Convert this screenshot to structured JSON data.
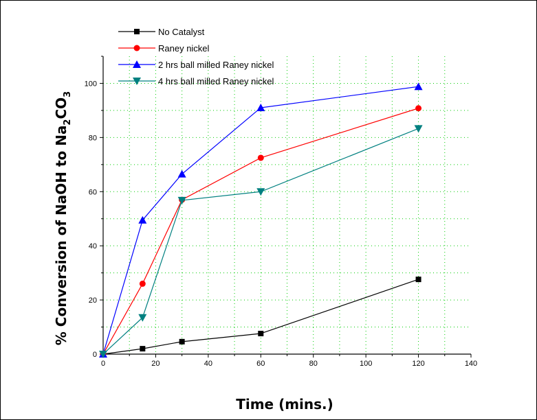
{
  "chart_data": {
    "type": "line",
    "xlabel": "Time (mins.)",
    "ylabel": {
      "text": "% Conversion of NaOH to Na",
      "sub1": "2",
      "mid": "CO",
      "sub2": "3"
    },
    "xlim": [
      0,
      140
    ],
    "ylim": [
      0,
      110
    ],
    "xticks": [
      0,
      20,
      40,
      60,
      80,
      100,
      120,
      140
    ],
    "yticks": [
      0,
      20,
      40,
      60,
      80,
      100
    ],
    "grid": true,
    "legend_position": "top-left",
    "series": [
      {
        "name": "No Catalyst",
        "color": "#000000",
        "marker": "square",
        "x": [
          0,
          15,
          30,
          60,
          120
        ],
        "y": [
          0,
          2,
          4.6,
          7.6,
          27.6
        ]
      },
      {
        "name": "Raney nickel",
        "color": "#ff0000",
        "marker": "circle",
        "x": [
          0,
          15,
          30,
          60,
          120
        ],
        "y": [
          0,
          26,
          57,
          72.5,
          90.8
        ]
      },
      {
        "name": "2 hrs ball milled Raney nickel",
        "color": "#0000ff",
        "marker": "triangle-up",
        "x": [
          0,
          15,
          30,
          60,
          120
        ],
        "y": [
          0,
          49.5,
          66.5,
          91,
          98.8
        ]
      },
      {
        "name": "4 hrs ball milled Raney nickel",
        "color": "#008080",
        "marker": "triangle-down",
        "x": [
          0,
          15,
          30,
          60,
          120
        ],
        "y": [
          0,
          13.5,
          56.8,
          60,
          83.3
        ]
      }
    ]
  }
}
